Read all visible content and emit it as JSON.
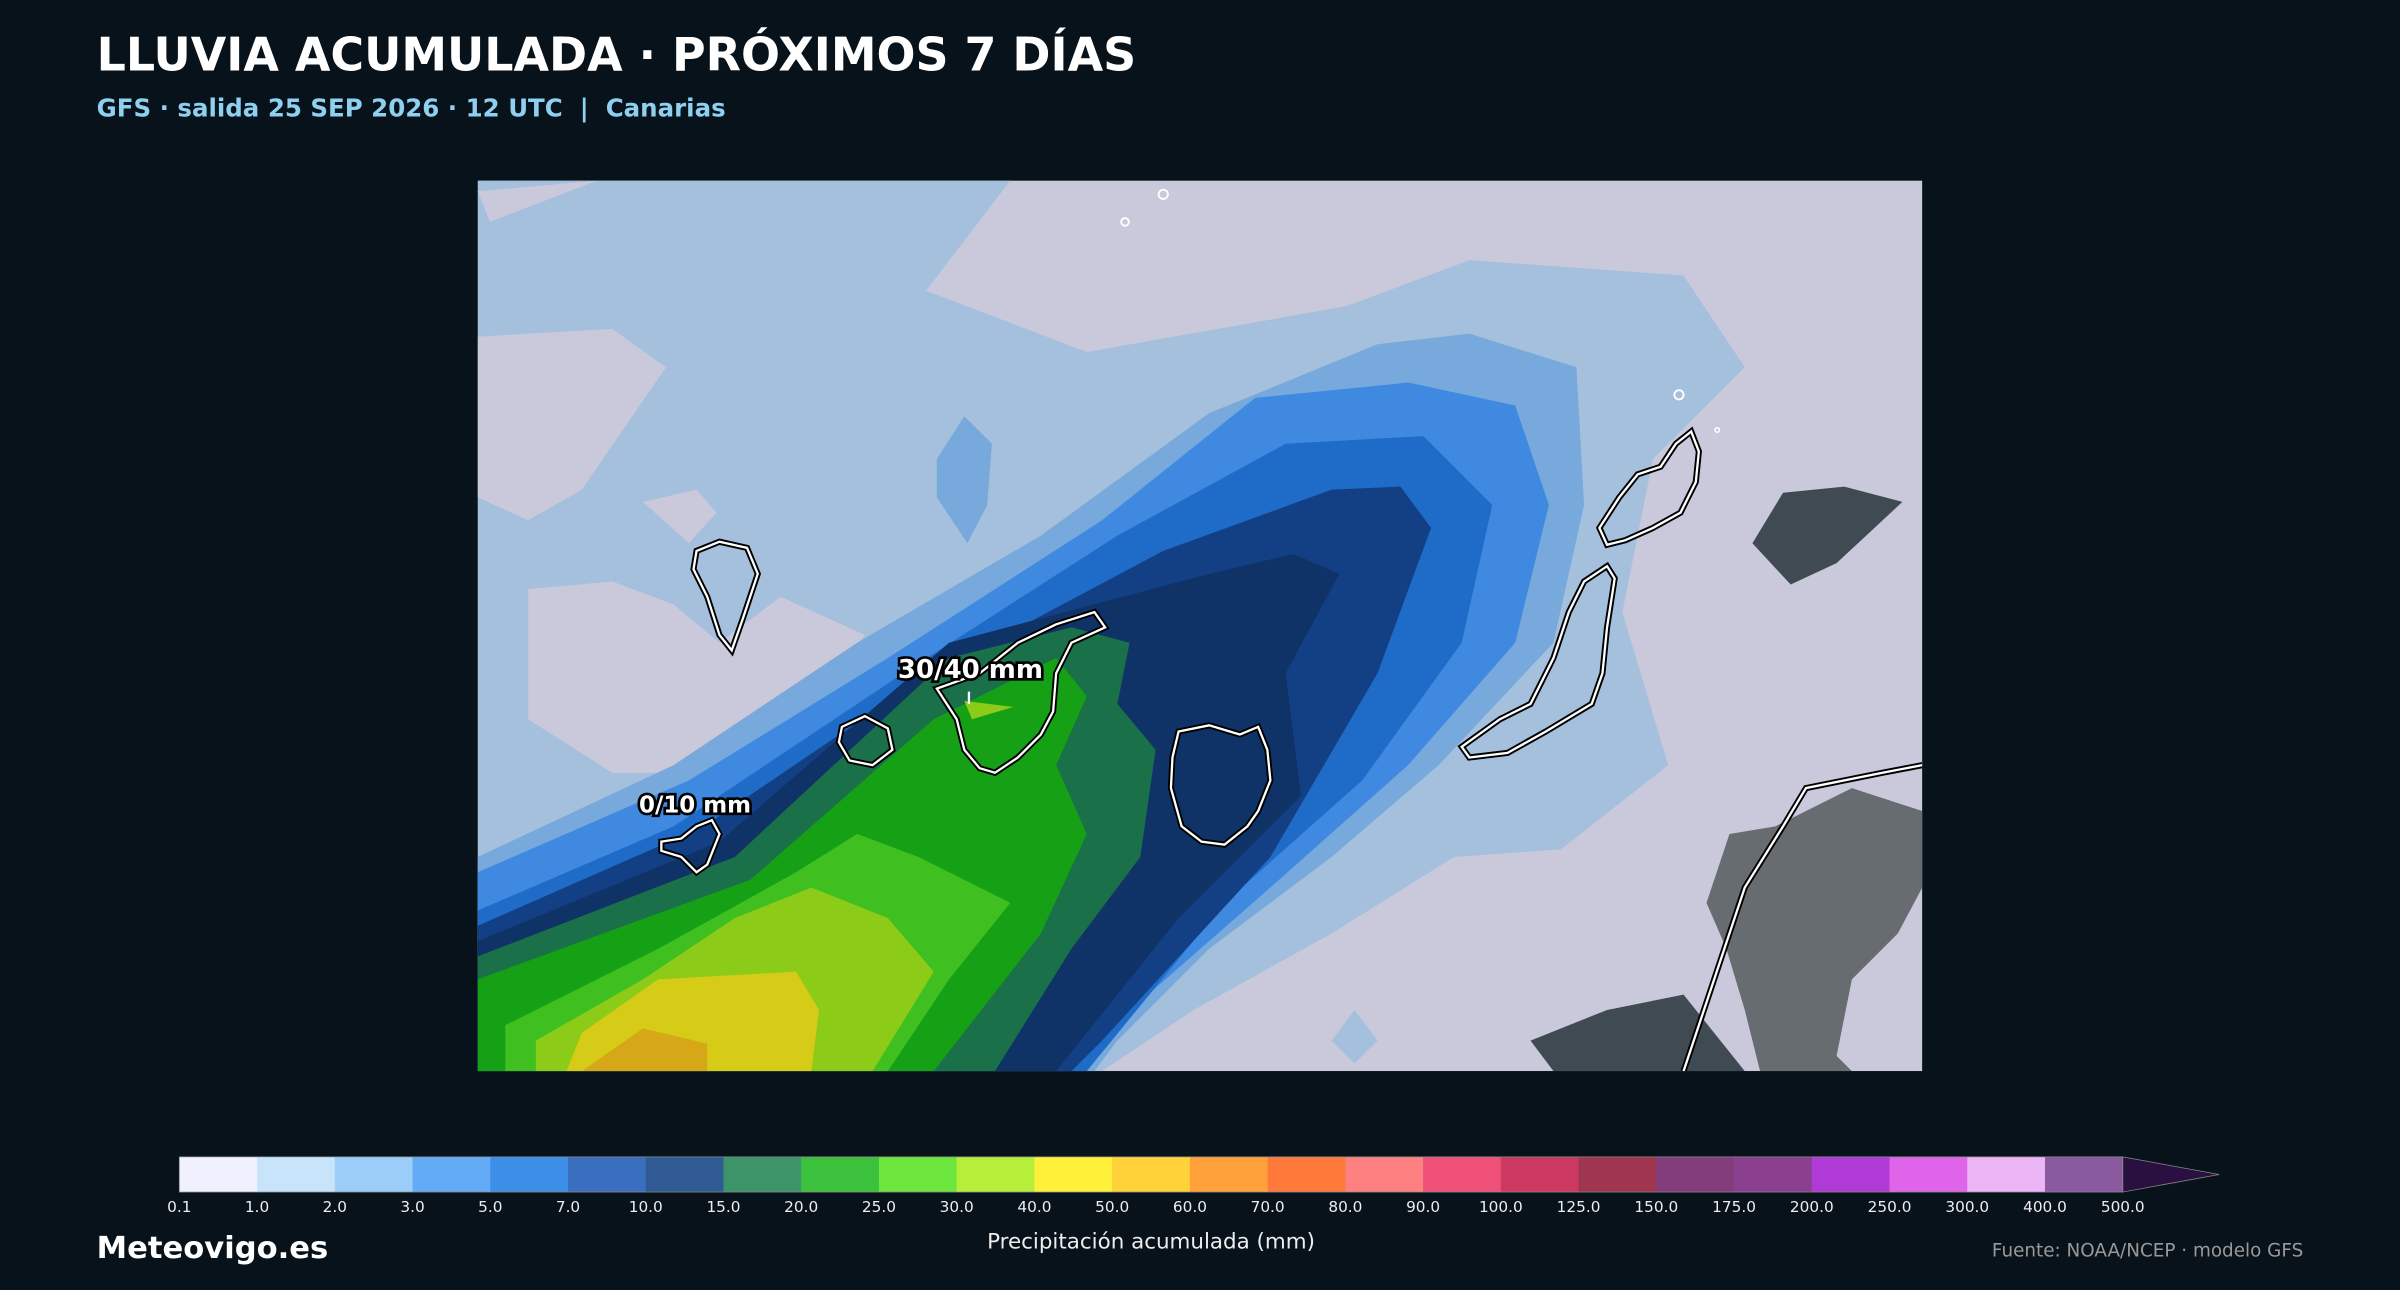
{
  "header": {
    "title": "LLUVIA ACUMULADA · PRÓXIMOS 7 DÍAS",
    "subtitle": "GFS · salida 25 SEP 2026 · 12 UTC  |  Canarias"
  },
  "map": {
    "labels": [
      "30/40 mm",
      "0/10 mm"
    ]
  },
  "colorbar": {
    "ticks": [
      "0.1",
      "1.0",
      "2.0",
      "3.0",
      "5.0",
      "7.0",
      "10.0",
      "15.0",
      "20.0",
      "25.0",
      "30.0",
      "40.0",
      "50.0",
      "60.0",
      "70.0",
      "80.0",
      "90.0",
      "100.0",
      "125.0",
      "150.0",
      "175.0",
      "200.0",
      "250.0",
      "300.0",
      "400.0",
      "500.0"
    ],
    "colors": [
      "#f0f0ff",
      "#c8e4fb",
      "#9ccdf9",
      "#63acf5",
      "#3d8ee6",
      "#3a6fbf",
      "#2f5a94",
      "#3d9468",
      "#3cc13c",
      "#6de63d",
      "#b6ef3a",
      "#fff03a",
      "#ffd23a",
      "#ffa03a",
      "#ff7a3a",
      "#ff8080",
      "#ef5078",
      "#cc3960",
      "#a03550",
      "#843d7c",
      "#8a3f8f",
      "#b03ad6",
      "#e064ea",
      "#ebb4f5",
      "#8a5aa0"
    ],
    "extend_color": "#2a1040",
    "label": "Precipitación acumulada (mm)"
  },
  "footer": {
    "brand": "Meteovigo.es",
    "source": "Fuente: NOAA/NCEP · modelo GFS"
  }
}
